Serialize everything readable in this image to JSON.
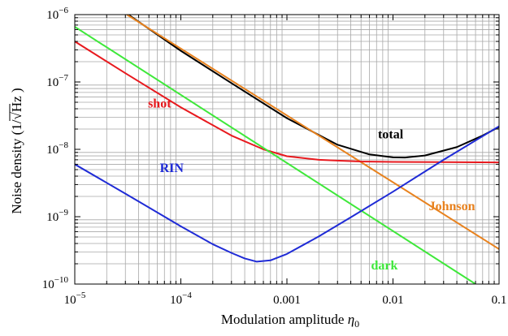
{
  "chart_data": {
    "type": "line",
    "title": "",
    "xlabel": "Modulation amplitude",
    "xlabel_symbol": "η",
    "xlabel_subscript": "0",
    "ylabel": "Noise density (1/",
    "ylabel_unit": "Hz",
    "ylabel_close": " )",
    "x_scale": "log",
    "y_scale": "log",
    "xlim": [
      1e-05,
      0.1
    ],
    "ylim": [
      1e-10,
      1e-06
    ],
    "grid": true,
    "legend": "inline labels",
    "x_ticks": [
      {
        "value": 1e-05,
        "base": "10",
        "exp": "−5"
      },
      {
        "value": 0.0001,
        "base": "10",
        "exp": "−4"
      },
      {
        "value": 0.001,
        "label": "0.001"
      },
      {
        "value": 0.01,
        "label": "0.01"
      },
      {
        "value": 0.1,
        "label": "0.1"
      }
    ],
    "y_ticks": [
      {
        "value": 1e-10,
        "base": "10",
        "exp": "−10"
      },
      {
        "value": 1e-09,
        "base": "10",
        "exp": "−9"
      },
      {
        "value": 1e-08,
        "base": "10",
        "exp": "−8"
      },
      {
        "value": 1e-07,
        "base": "10",
        "exp": "−7"
      },
      {
        "value": 1e-06,
        "base": "10",
        "exp": "−6"
      }
    ],
    "series": [
      {
        "name": "total",
        "color": "#000000",
        "x": [
          3.2e-05,
          0.0001,
          0.0003,
          0.001,
          0.003,
          0.006,
          0.01,
          0.013,
          0.02,
          0.04,
          0.07,
          0.1
        ],
        "y": [
          1e-06,
          2.9e-07,
          9.6e-08,
          2.9e-08,
          1.17e-08,
          8.4e-09,
          7.6e-09,
          7.55e-09,
          8.1e-09,
          1.08e-08,
          1.6e-08,
          2.15e-08
        ]
      },
      {
        "name": "Johnson",
        "color": "#e8821e",
        "x": [
          3.1e-05,
          0.1
        ],
        "y": [
          1e-06,
          3.3e-10
        ]
      },
      {
        "name": "shot",
        "color": "#e8191e",
        "x": [
          1e-05,
          3e-05,
          0.0001,
          0.0003,
          0.0006,
          0.001,
          0.002,
          0.003,
          0.005,
          0.01,
          0.03,
          0.1
        ],
        "y": [
          4e-07,
          1.35e-07,
          4.2e-08,
          1.6e-08,
          1e-08,
          7.9e-09,
          7e-09,
          6.8e-09,
          6.6e-09,
          6.5e-09,
          6.45e-09,
          6.4e-09
        ]
      },
      {
        "name": "dark",
        "color": "#3ee83a",
        "x": [
          1e-05,
          0.06
        ],
        "y": [
          6.6e-07,
          1e-10
        ]
      },
      {
        "name": "RIN",
        "color": "#1f2bd6",
        "x": [
          1e-05,
          3e-05,
          0.0001,
          0.0002,
          0.0003,
          0.0004,
          0.00052,
          0.0007,
          0.001,
          0.002,
          0.004,
          0.01,
          0.03,
          0.1
        ],
        "y": [
          6e-09,
          2.2e-09,
          7.2e-10,
          3.9e-10,
          2.9e-10,
          2.4e-10,
          2.15e-10,
          2.25e-10,
          2.8e-10,
          5.1e-10,
          9.8e-10,
          2.35e-09,
          7e-09,
          2.2e-08
        ]
      }
    ],
    "annotations": [
      {
        "text": "total",
        "color": "#000000",
        "x": 0.0095,
        "y": 1.45e-08
      },
      {
        "text": "shot",
        "color": "#e8191e",
        "x": 6.3e-05,
        "y": 4.2e-08
      },
      {
        "text": "RIN",
        "color": "#1f2bd6",
        "x": 8.2e-05,
        "y": 4.6e-09
      },
      {
        "text": "Johnson",
        "color": "#e8821e",
        "x": 0.036,
        "y": 1.25e-09
      },
      {
        "text": "dark",
        "color": "#3ee83a",
        "x": 0.0083,
        "y": 1.65e-10
      }
    ]
  }
}
